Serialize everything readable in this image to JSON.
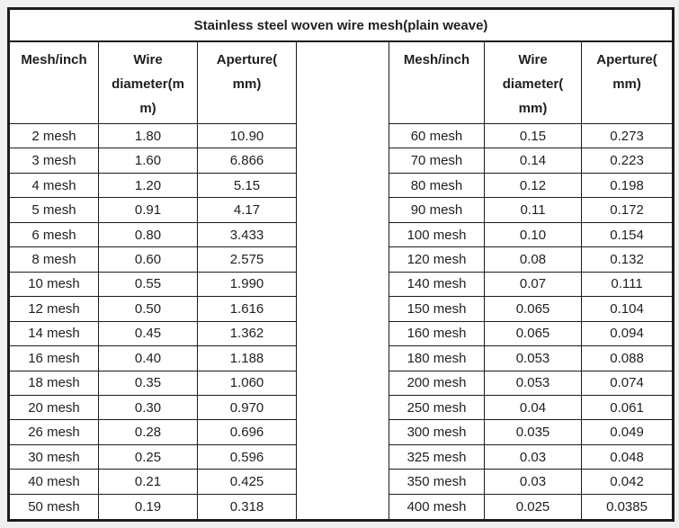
{
  "title": "Stainless steel woven wire mesh(plain weave)",
  "colors": {
    "border": "#1c1c1c",
    "text": "#1f1f1f",
    "cell_background": "#ffffff",
    "page_background": "#f0f0f1"
  },
  "tables": [
    {
      "name": "left",
      "headers": [
        "Mesh/inch",
        "Wire\ndiameter(m\nm)",
        "Aperture(\nmm)"
      ],
      "rows": [
        [
          "2 mesh",
          "1.80",
          "10.90"
        ],
        [
          "3 mesh",
          "1.60",
          "6.866"
        ],
        [
          "4 mesh",
          "1.20",
          "5.15"
        ],
        [
          "5 mesh",
          "0.91",
          "4.17"
        ],
        [
          "6 mesh",
          "0.80",
          "3.433"
        ],
        [
          "8 mesh",
          "0.60",
          "2.575"
        ],
        [
          "10 mesh",
          "0.55",
          "1.990"
        ],
        [
          "12 mesh",
          "0.50",
          "1.616"
        ],
        [
          "14 mesh",
          "0.45",
          "1.362"
        ],
        [
          "16 mesh",
          "0.40",
          "1.188"
        ],
        [
          "18 mesh",
          "0.35",
          "1.060"
        ],
        [
          "20 mesh",
          "0.30",
          "0.970"
        ],
        [
          "26 mesh",
          "0.28",
          "0.696"
        ],
        [
          "30 mesh",
          "0.25",
          "0.596"
        ],
        [
          "40 mesh",
          "0.21",
          "0.425"
        ],
        [
          "50 mesh",
          "0.19",
          "0.318"
        ]
      ]
    },
    {
      "name": "right",
      "headers": [
        "Mesh/inch",
        "Wire\ndiameter(\nmm)",
        "Aperture(\nmm)"
      ],
      "rows": [
        [
          "60 mesh",
          "0.15",
          "0.273"
        ],
        [
          "70 mesh",
          "0.14",
          "0.223"
        ],
        [
          "80 mesh",
          "0.12",
          "0.198"
        ],
        [
          "90 mesh",
          "0.11",
          "0.172"
        ],
        [
          "100 mesh",
          "0.10",
          "0.154"
        ],
        [
          "120 mesh",
          "0.08",
          "0.132"
        ],
        [
          "140 mesh",
          "0.07",
          "0.111"
        ],
        [
          "150 mesh",
          "0.065",
          "0.104"
        ],
        [
          "160 mesh",
          "0.065",
          "0.094"
        ],
        [
          "180 mesh",
          "0.053",
          "0.088"
        ],
        [
          "200 mesh",
          "0.053",
          "0.074"
        ],
        [
          "250 mesh",
          "0.04",
          "0.061"
        ],
        [
          "300 mesh",
          "0.035",
          "0.049"
        ],
        [
          "325 mesh",
          "0.03",
          "0.048"
        ],
        [
          "350 mesh",
          "0.03",
          "0.042"
        ],
        [
          "400 mesh",
          "0.025",
          "0.0385"
        ]
      ]
    }
  ]
}
